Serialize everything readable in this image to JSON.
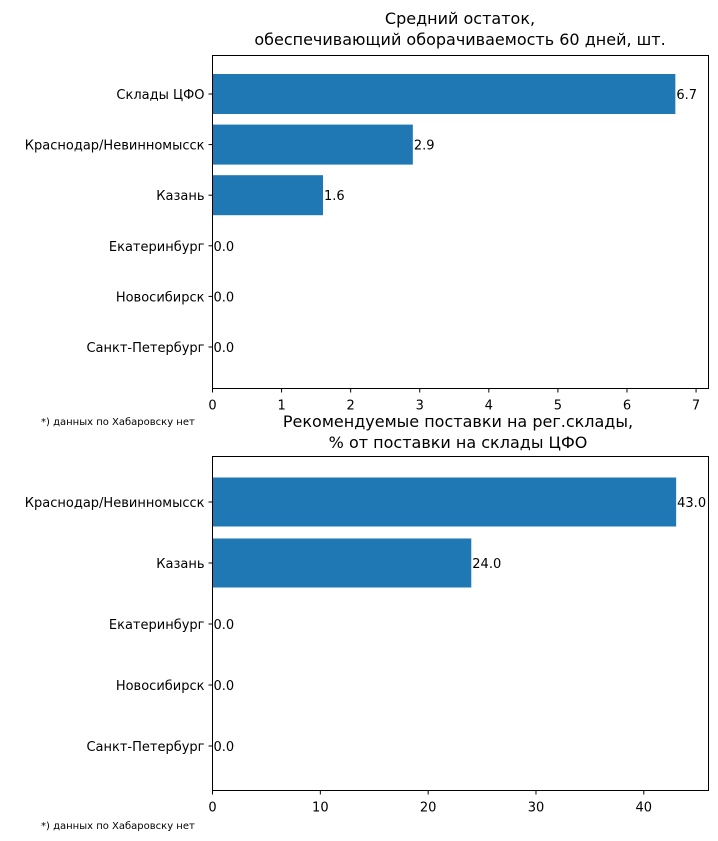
{
  "chart_data": [
    {
      "type": "bar",
      "orientation": "horizontal",
      "title_lines": [
        "Средний остаток,",
        "обеспечивающий оборачиваемость 60 дней, шт."
      ],
      "categories": [
        "Склады ЦФО",
        "Краснодар/Невинномысск",
        "Казань",
        "Екатеринбург",
        "Новосибирск",
        "Санкт-Петербург"
      ],
      "values": [
        6.7,
        2.9,
        1.6,
        0.0,
        0.0,
        0.0
      ],
      "value_labels": [
        "6.7",
        "2.9",
        "1.6",
        "0.0",
        "0.0",
        "0.0"
      ],
      "xticks": [
        "0",
        "1",
        "2",
        "3",
        "4",
        "5",
        "6",
        "7"
      ],
      "xlim": [
        0,
        7.18
      ],
      "color": "#1f77b4",
      "footnote": "*) данных по Хабаровску нет"
    },
    {
      "type": "bar",
      "orientation": "horizontal",
      "title_lines": [
        "Рекомендуемые поставки на рег.склады,",
        "% от поставки на склады ЦФО"
      ],
      "categories": [
        "Краснодар/Невинномысск",
        "Казань",
        "Екатеринбург",
        "Новосибирск",
        "Санкт-Петербург"
      ],
      "values": [
        43.0,
        24.0,
        0.0,
        0.0,
        0.0
      ],
      "value_labels": [
        "43.0",
        "24.0",
        "0.0",
        "0.0",
        "0.0"
      ],
      "xticks": [
        "0",
        "10",
        "20",
        "30",
        "40"
      ],
      "xlim": [
        0,
        46
      ],
      "color": "#1f77b4",
      "footnote": "*) данных по Хабаровску нет"
    }
  ]
}
